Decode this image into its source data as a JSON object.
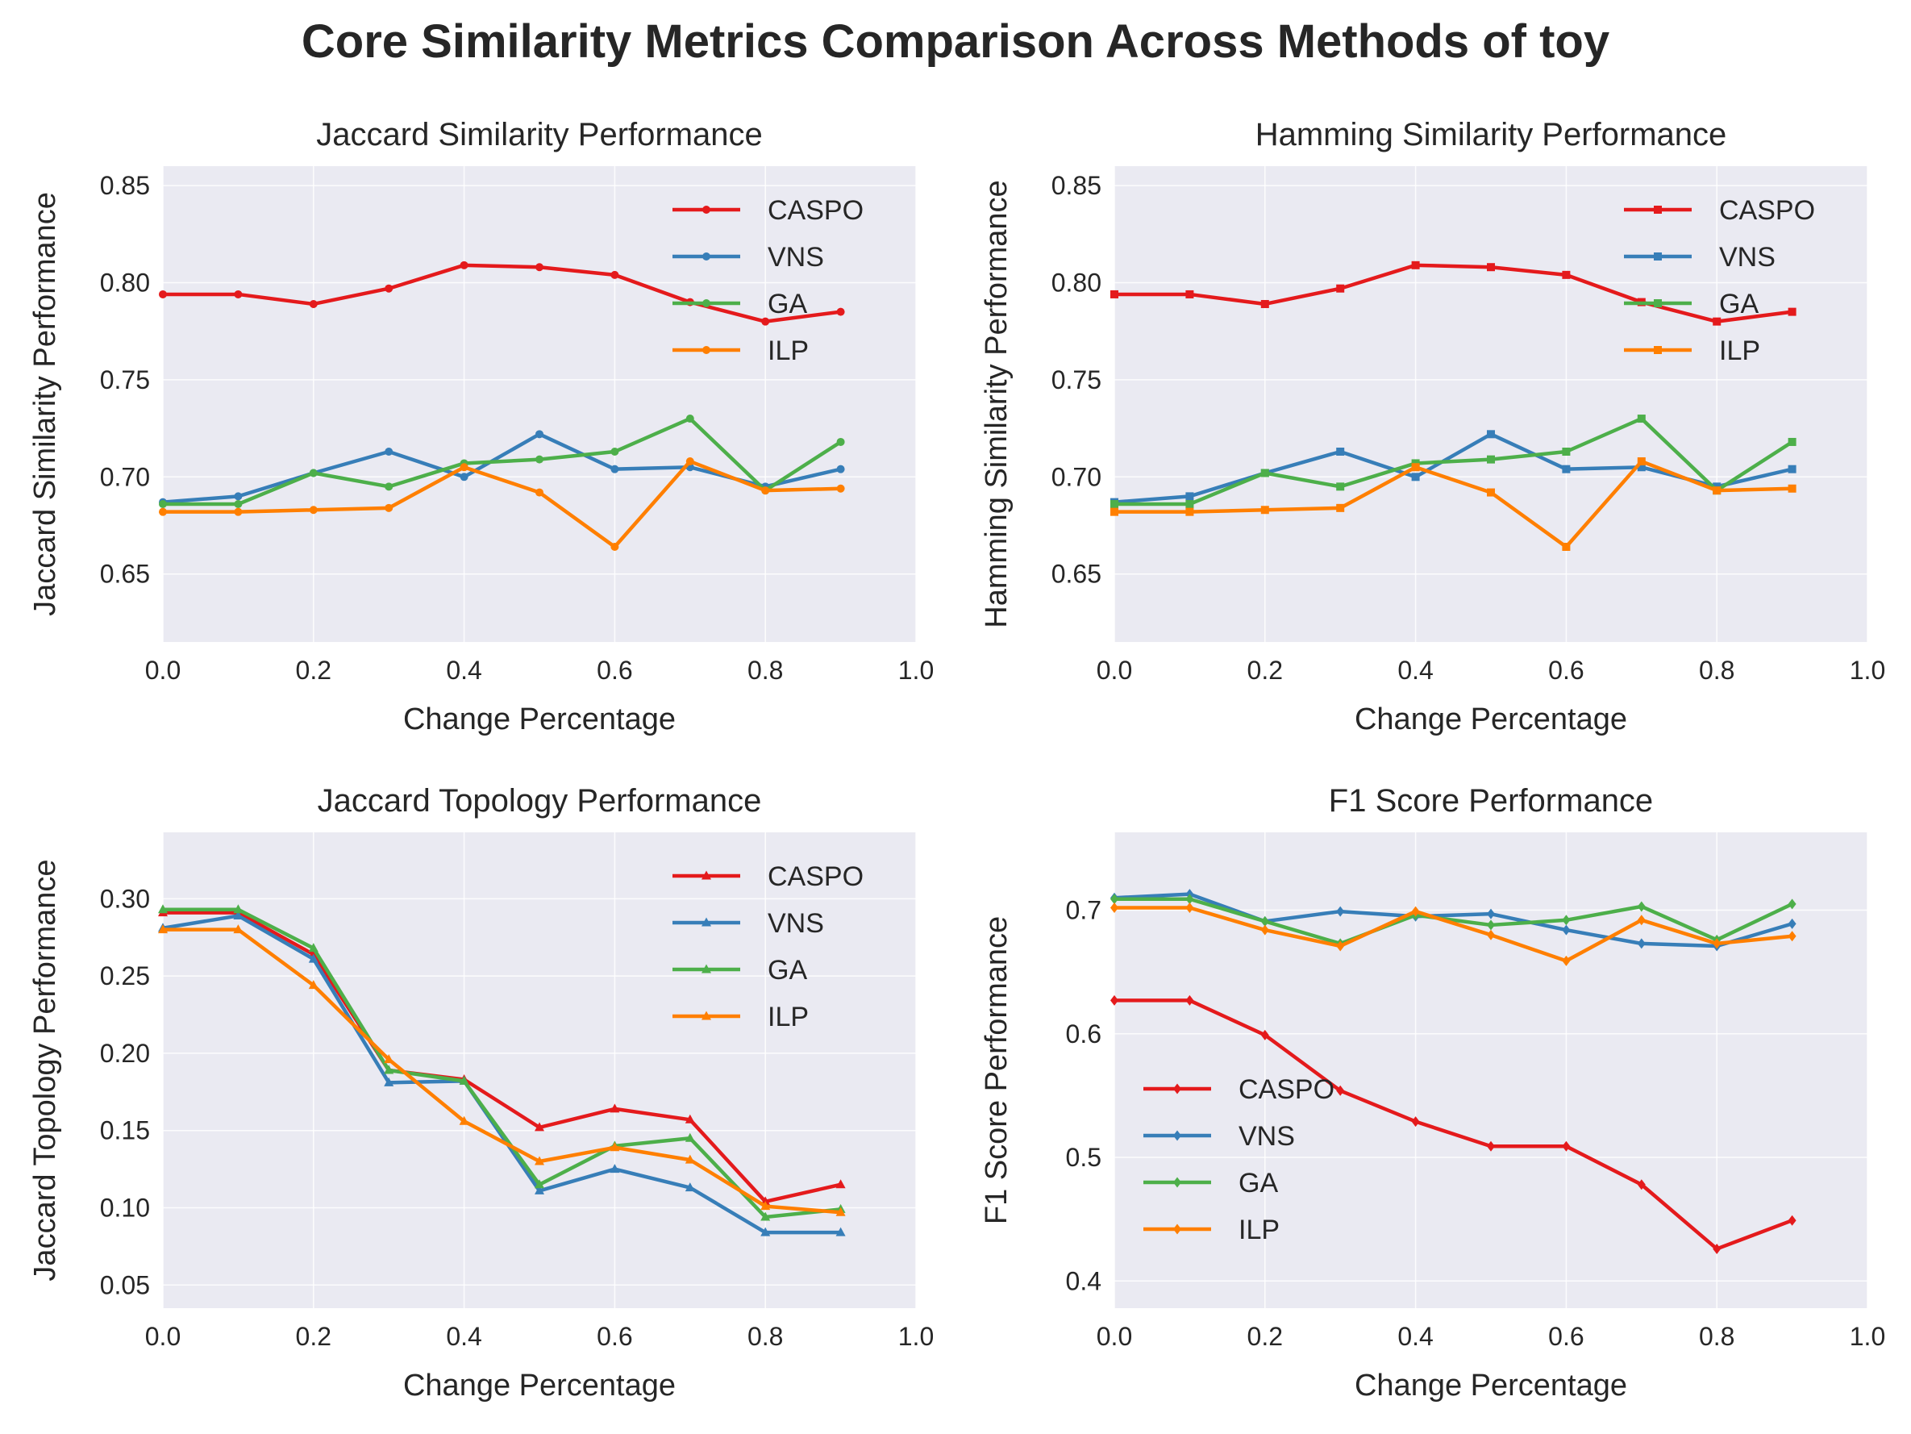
{
  "figure": {
    "title": "Core Similarity Metrics Comparison Across Methods of toy"
  },
  "colors": {
    "CASPO": "#e41a1c",
    "VNS": "#377eb8",
    "GA": "#4daf4a",
    "ILP": "#ff7f00",
    "plot_bg": "#eaeaf2",
    "grid": "#ffffff"
  },
  "chart_data": [
    {
      "type": "line",
      "title": "Jaccard Similarity Performance",
      "xlabel": "Change Percentage",
      "ylabel": "Jaccard Similarity Performance",
      "xlim": [
        0,
        1.0
      ],
      "ylim": [
        0.615,
        0.86
      ],
      "xticks": [
        0.0,
        0.2,
        0.4,
        0.6,
        0.8,
        1.0
      ],
      "xtick_labels": [
        "0.0",
        "0.2",
        "0.4",
        "0.6",
        "0.8",
        "1.0"
      ],
      "yticks": [
        0.65,
        0.7,
        0.75,
        0.8,
        0.85
      ],
      "ytick_labels": [
        "0.65",
        "0.70",
        "0.75",
        "0.80",
        "0.85"
      ],
      "marker": "circle",
      "legend": "top-right",
      "grid": true,
      "x": [
        0.0,
        0.1,
        0.2,
        0.3,
        0.4,
        0.5,
        0.6,
        0.7,
        0.8,
        0.9
      ],
      "series": [
        {
          "name": "CASPO",
          "values": [
            0.794,
            0.794,
            0.789,
            0.797,
            0.809,
            0.808,
            0.804,
            0.79,
            0.78,
            0.785
          ]
        },
        {
          "name": "VNS",
          "values": [
            0.687,
            0.69,
            0.702,
            0.713,
            0.7,
            0.722,
            0.704,
            0.705,
            0.695,
            0.704
          ]
        },
        {
          "name": "GA",
          "values": [
            0.686,
            0.686,
            0.702,
            0.695,
            0.707,
            0.709,
            0.713,
            0.73,
            0.693,
            0.718
          ]
        },
        {
          "name": "ILP",
          "values": [
            0.682,
            0.682,
            0.683,
            0.684,
            0.705,
            0.692,
            0.664,
            0.708,
            0.693,
            0.694
          ]
        }
      ]
    },
    {
      "type": "line",
      "title": "Hamming Similarity Performance",
      "xlabel": "Change Percentage",
      "ylabel": "Hamming Similarity Performance",
      "xlim": [
        0,
        1.0
      ],
      "ylim": [
        0.615,
        0.86
      ],
      "xticks": [
        0.0,
        0.2,
        0.4,
        0.6,
        0.8,
        1.0
      ],
      "xtick_labels": [
        "0.0",
        "0.2",
        "0.4",
        "0.6",
        "0.8",
        "1.0"
      ],
      "yticks": [
        0.65,
        0.7,
        0.75,
        0.8,
        0.85
      ],
      "ytick_labels": [
        "0.65",
        "0.70",
        "0.75",
        "0.80",
        "0.85"
      ],
      "marker": "square",
      "legend": "top-right",
      "grid": true,
      "x": [
        0.0,
        0.1,
        0.2,
        0.3,
        0.4,
        0.5,
        0.6,
        0.7,
        0.8,
        0.9
      ],
      "series": [
        {
          "name": "CASPO",
          "values": [
            0.794,
            0.794,
            0.789,
            0.797,
            0.809,
            0.808,
            0.804,
            0.79,
            0.78,
            0.785
          ]
        },
        {
          "name": "VNS",
          "values": [
            0.687,
            0.69,
            0.702,
            0.713,
            0.7,
            0.722,
            0.704,
            0.705,
            0.695,
            0.704
          ]
        },
        {
          "name": "GA",
          "values": [
            0.686,
            0.686,
            0.702,
            0.695,
            0.707,
            0.709,
            0.713,
            0.73,
            0.693,
            0.718
          ]
        },
        {
          "name": "ILP",
          "values": [
            0.682,
            0.682,
            0.683,
            0.684,
            0.705,
            0.692,
            0.664,
            0.708,
            0.693,
            0.694
          ]
        }
      ]
    },
    {
      "type": "line",
      "title": "Jaccard Topology Performance",
      "xlabel": "Change Percentage",
      "ylabel": "Jaccard Topology Performance",
      "xlim": [
        0,
        1.0
      ],
      "ylim": [
        0.035,
        0.343
      ],
      "xticks": [
        0.0,
        0.2,
        0.4,
        0.6,
        0.8,
        1.0
      ],
      "xtick_labels": [
        "0.0",
        "0.2",
        "0.4",
        "0.6",
        "0.8",
        "1.0"
      ],
      "yticks": [
        0.05,
        0.1,
        0.15,
        0.2,
        0.25,
        0.3
      ],
      "ytick_labels": [
        "0.05",
        "0.10",
        "0.15",
        "0.20",
        "0.25",
        "0.30"
      ],
      "marker": "triangle",
      "legend": "top-right",
      "grid": true,
      "x": [
        0.0,
        0.1,
        0.2,
        0.3,
        0.4,
        0.5,
        0.6,
        0.7,
        0.8,
        0.9
      ],
      "series": [
        {
          "name": "CASPO",
          "values": [
            0.291,
            0.291,
            0.264,
            0.189,
            0.183,
            0.152,
            0.164,
            0.157,
            0.104,
            0.115
          ]
        },
        {
          "name": "VNS",
          "values": [
            0.281,
            0.289,
            0.261,
            0.181,
            0.182,
            0.111,
            0.125,
            0.113,
            0.084,
            0.084
          ]
        },
        {
          "name": "GA",
          "values": [
            0.293,
            0.293,
            0.268,
            0.189,
            0.182,
            0.115,
            0.14,
            0.145,
            0.094,
            0.099
          ]
        },
        {
          "name": "ILP",
          "values": [
            0.28,
            0.28,
            0.244,
            0.196,
            0.156,
            0.13,
            0.139,
            0.131,
            0.101,
            0.097
          ]
        }
      ]
    },
    {
      "type": "line",
      "title": "F1 Score Performance",
      "xlabel": "Change Percentage",
      "ylabel": "F1 Score Performance",
      "xlim": [
        0,
        1.0
      ],
      "ylim": [
        0.378,
        0.763
      ],
      "xticks": [
        0.0,
        0.2,
        0.4,
        0.6,
        0.8,
        1.0
      ],
      "xtick_labels": [
        "0.0",
        "0.2",
        "0.4",
        "0.6",
        "0.8",
        "1.0"
      ],
      "yticks": [
        0.4,
        0.5,
        0.6,
        0.7
      ],
      "ytick_labels": [
        "0.4",
        "0.5",
        "0.6",
        "0.7"
      ],
      "marker": "diamond",
      "legend": "bottom-left",
      "grid": true,
      "x": [
        0.0,
        0.1,
        0.2,
        0.3,
        0.4,
        0.5,
        0.6,
        0.7,
        0.8,
        0.9
      ],
      "series": [
        {
          "name": "CASPO",
          "values": [
            0.627,
            0.627,
            0.599,
            0.554,
            0.529,
            0.509,
            0.509,
            0.478,
            0.426,
            0.449
          ]
        },
        {
          "name": "VNS",
          "values": [
            0.71,
            0.713,
            0.691,
            0.699,
            0.695,
            0.697,
            0.684,
            0.673,
            0.671,
            0.689
          ]
        },
        {
          "name": "GA",
          "values": [
            0.709,
            0.709,
            0.691,
            0.673,
            0.696,
            0.688,
            0.692,
            0.703,
            0.676,
            0.705
          ]
        },
        {
          "name": "ILP",
          "values": [
            0.702,
            0.702,
            0.684,
            0.671,
            0.699,
            0.68,
            0.659,
            0.692,
            0.673,
            0.679
          ]
        }
      ]
    }
  ]
}
